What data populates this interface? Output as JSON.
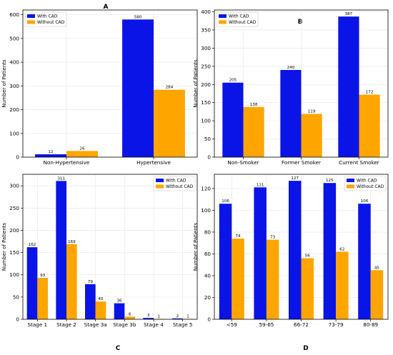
{
  "colors": {
    "with_cad": "#0a14e6",
    "without_cad": "#ffa500"
  },
  "chart_data": [
    {
      "panel": "A",
      "type": "bar",
      "categories": [
        "Non-Hypertensive",
        "Hypertensive"
      ],
      "series": [
        {
          "name": "With CAD",
          "values": [
            12,
            580
          ]
        },
        {
          "name": "Without CAD",
          "values": [
            26,
            284
          ]
        }
      ],
      "ylabel": "Number of Patients",
      "ylim": [
        0,
        620
      ],
      "yticks": [
        0,
        100,
        200,
        300,
        400,
        500,
        600
      ],
      "grid": true,
      "legend": "top-left"
    },
    {
      "panel": "B",
      "type": "bar",
      "categories": [
        "Non-Smoker",
        "Former Smoker",
        "Current Smoker"
      ],
      "series": [
        {
          "name": "With CAD",
          "values": [
            205,
            240,
            387
          ]
        },
        {
          "name": "Without CAD",
          "values": [
            138,
            119,
            172
          ]
        }
      ],
      "ylabel": "Number of Patients",
      "ylim": [
        0,
        405
      ],
      "yticks": [
        0,
        50,
        100,
        150,
        200,
        250,
        300,
        350,
        400
      ],
      "grid": true,
      "legend": "top-left"
    },
    {
      "panel": "C",
      "type": "bar",
      "categories": [
        "Stage 1",
        "Stage 2",
        "Stage 3a",
        "Stage 3b",
        "Stage 4",
        "Stage 5"
      ],
      "series": [
        {
          "name": "With CAD",
          "values": [
            162,
            311,
            79,
            36,
            3,
            2
          ]
        },
        {
          "name": "Without CAD",
          "values": [
            93,
            169,
            40,
            6,
            1,
            1
          ]
        }
      ],
      "ylabel": "Number of Patients",
      "ylim": [
        0,
        326
      ],
      "yticks": [
        0,
        50,
        100,
        150,
        200,
        250,
        300
      ],
      "grid": true,
      "legend": "top-right"
    },
    {
      "panel": "D",
      "type": "bar",
      "categories": [
        "<59",
        "59-65",
        "66-72",
        "73-79",
        "80-89"
      ],
      "series": [
        {
          "name": "With CAD",
          "values": [
            106,
            121,
            127,
            125,
            106
          ]
        },
        {
          "name": "Without CAD",
          "values": [
            74,
            73,
            56,
            62,
            45
          ]
        }
      ],
      "ylabel": "Number of Patients",
      "ylim": [
        0,
        133
      ],
      "yticks": [
        0,
        20,
        40,
        60,
        80,
        100,
        120
      ],
      "grid": true,
      "legend": "top-right"
    }
  ]
}
